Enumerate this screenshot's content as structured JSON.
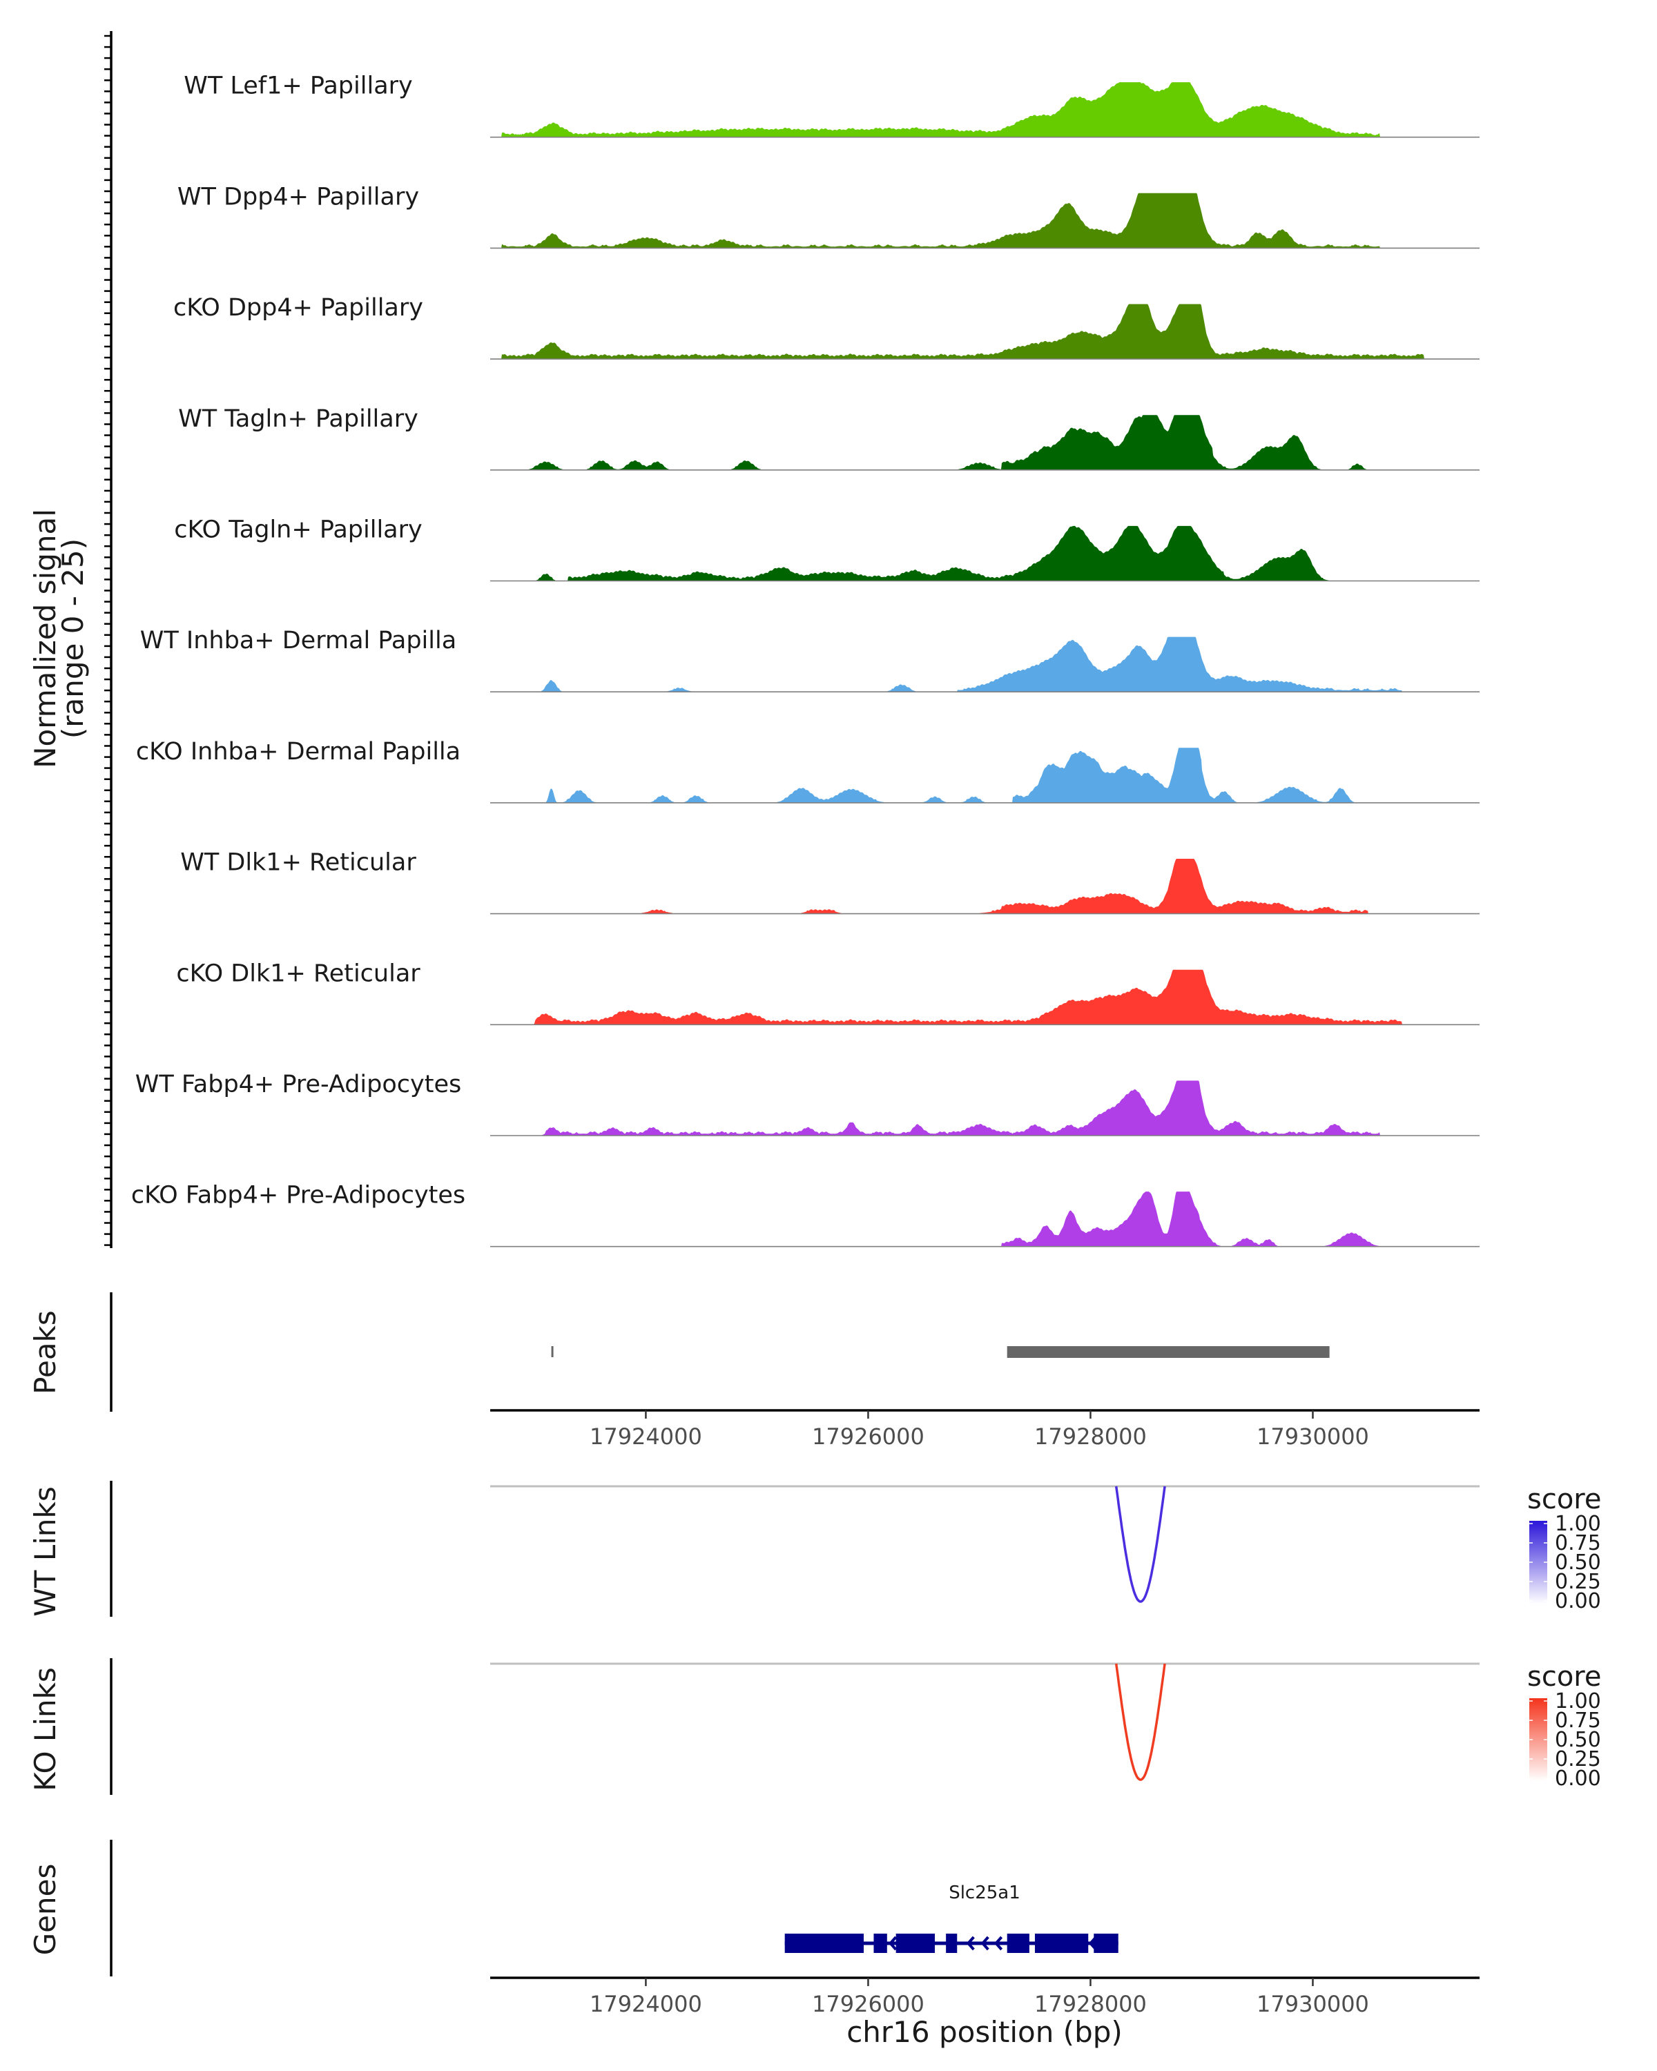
{
  "chart_data": {
    "type": "genome-browser coverage plot",
    "chromosome": "chr16",
    "region": [
      17922600,
      17931500
    ],
    "coverage": {
      "ylabel": "Normalized signal\n(range 0 - 25)",
      "ylabel_line1": "Normalized signal",
      "ylabel_line2": "(range 0 - 25)",
      "ylim": [
        0,
        25
      ],
      "tracks": [
        {
          "name": "WT Lef1+ Papillary",
          "color": "#66cc00",
          "peaks": [
            [
              17923160,
              80,
              0.2
            ],
            [
              17925000,
              600,
              0.09
            ],
            [
              17926400,
              500,
              0.09
            ],
            [
              17927500,
              160,
              0.32
            ],
            [
              17927850,
              120,
              0.52
            ],
            [
              17928200,
              200,
              0.48
            ],
            [
              17928450,
              220,
              0.74
            ],
            [
              17928850,
              130,
              0.9
            ],
            [
              17929500,
              230,
              0.5
            ],
            [
              17929900,
              180,
              0.18
            ]
          ],
          "base": [
            17922700,
            17930600,
            0.07
          ]
        },
        {
          "name": "WT Dpp4+ Papillary",
          "color": "#4d8a00",
          "peaks": [
            [
              17923160,
              60,
              0.22
            ],
            [
              17924000,
              120,
              0.15
            ],
            [
              17924700,
              80,
              0.1
            ],
            [
              17927300,
              150,
              0.18
            ],
            [
              17927700,
              180,
              0.35
            ],
            [
              17927800,
              90,
              0.45
            ],
            [
              17928100,
              140,
              0.25
            ],
            [
              17928450,
              100,
              0.52
            ],
            [
              17928550,
              100,
              0.8
            ],
            [
              17928870,
              90,
              0.98
            ],
            [
              17928780,
              150,
              0.7
            ],
            [
              17929500,
              60,
              0.24
            ],
            [
              17929720,
              70,
              0.3
            ]
          ],
          "base": [
            17922700,
            17930600,
            0.05
          ]
        },
        {
          "name": "cKO Dpp4+ Papillary",
          "color": "#4d8a00",
          "peaks": [
            [
              17923150,
              70,
              0.24
            ],
            [
              17927500,
              200,
              0.2
            ],
            [
              17927950,
              180,
              0.42
            ],
            [
              17928350,
              110,
              0.62
            ],
            [
              17928470,
              90,
              0.82
            ],
            [
              17928820,
              120,
              0.82
            ],
            [
              17928930,
              70,
              1.0
            ],
            [
              17929600,
              200,
              0.12
            ]
          ],
          "base": [
            17922700,
            17931000,
            0.08
          ]
        },
        {
          "name": "WT Tagln+ Papillary",
          "color": "#006400",
          "peaks": [
            [
              17923100,
              70,
              0.14
            ],
            [
              17923600,
              60,
              0.16
            ],
            [
              17923900,
              60,
              0.16
            ],
            [
              17924100,
              50,
              0.14
            ],
            [
              17924900,
              60,
              0.16
            ],
            [
              17927000,
              90,
              0.12
            ],
            [
              17927550,
              120,
              0.22
            ],
            [
              17927850,
              130,
              0.6
            ],
            [
              17928100,
              110,
              0.44
            ],
            [
              17928400,
              90,
              0.7
            ],
            [
              17928570,
              80,
              0.86
            ],
            [
              17928830,
              90,
              1.0
            ],
            [
              17928950,
              110,
              0.66
            ],
            [
              17929600,
              130,
              0.42
            ],
            [
              17929850,
              80,
              0.56
            ],
            [
              17930400,
              40,
              0.1
            ]
          ],
          "base": [
            17927200,
            17929100,
            0.14
          ]
        },
        {
          "name": "cKO Tagln+ Papillary",
          "color": "#006400",
          "peaks": [
            [
              17923100,
              40,
              0.12
            ],
            [
              17923800,
              200,
              0.12
            ],
            [
              17924500,
              100,
              0.1
            ],
            [
              17925200,
              100,
              0.18
            ],
            [
              17925700,
              200,
              0.1
            ],
            [
              17926400,
              100,
              0.12
            ],
            [
              17926800,
              120,
              0.18
            ],
            [
              17927600,
              160,
              0.3
            ],
            [
              17927840,
              120,
              0.62
            ],
            [
              17928000,
              150,
              0.4
            ],
            [
              17928350,
              120,
              0.66
            ],
            [
              17928470,
              150,
              0.4
            ],
            [
              17928800,
              100,
              0.66
            ],
            [
              17928950,
              130,
              0.6
            ],
            [
              17929700,
              160,
              0.42
            ],
            [
              17929920,
              70,
              0.4
            ]
          ],
          "base": [
            17923300,
            17929200,
            0.07
          ]
        },
        {
          "name": "WT Inhba+ Dermal Papilla",
          "color": "#5aa9e6",
          "peaks": [
            [
              17923150,
              40,
              0.2
            ],
            [
              17924300,
              60,
              0.06
            ],
            [
              17926300,
              60,
              0.12
            ],
            [
              17927250,
              160,
              0.18
            ],
            [
              17927650,
              220,
              0.48
            ],
            [
              17927870,
              120,
              0.58
            ],
            [
              17928300,
              150,
              0.46
            ],
            [
              17928450,
              80,
              0.46
            ],
            [
              17928850,
              110,
              1.0
            ],
            [
              17928760,
              140,
              0.66
            ],
            [
              17929250,
              120,
              0.22
            ],
            [
              17929650,
              200,
              0.16
            ]
          ],
          "base": [
            17926800,
            17930800,
            0.05
          ]
        },
        {
          "name": "cKO Inhba+ Dermal Papilla",
          "color": "#5aa9e6",
          "peaks": [
            [
              17923150,
              20,
              0.26
            ],
            [
              17923400,
              60,
              0.22
            ],
            [
              17924150,
              50,
              0.12
            ],
            [
              17924450,
              50,
              0.12
            ],
            [
              17925400,
              90,
              0.26
            ],
            [
              17925850,
              120,
              0.24
            ],
            [
              17926600,
              50,
              0.1
            ],
            [
              17926950,
              50,
              0.1
            ],
            [
              17927650,
              90,
              0.6
            ],
            [
              17927850,
              70,
              0.45
            ],
            [
              17928000,
              110,
              0.7
            ],
            [
              17928300,
              90,
              0.54
            ],
            [
              17928530,
              90,
              0.4
            ],
            [
              17928820,
              60,
              0.85
            ],
            [
              17928930,
              70,
              1.0
            ],
            [
              17929200,
              50,
              0.2
            ],
            [
              17929800,
              120,
              0.28
            ],
            [
              17930250,
              50,
              0.26
            ]
          ],
          "base": [
            17927300,
            17929000,
            0.15
          ]
        },
        {
          "name": "WT Dlk1+ Reticular",
          "color": "#ff3a30",
          "peaks": [
            [
              17924100,
              80,
              0.06
            ],
            [
              17925500,
              60,
              0.06
            ],
            [
              17925650,
              60,
              0.06
            ],
            [
              17927400,
              180,
              0.14
            ],
            [
              17927900,
              120,
              0.2
            ],
            [
              17928250,
              170,
              0.32
            ],
            [
              17928800,
              80,
              0.92
            ],
            [
              17928930,
              80,
              0.74
            ],
            [
              17929400,
              180,
              0.18
            ],
            [
              17929700,
              60,
              0.1
            ],
            [
              17930100,
              60,
              0.06
            ]
          ],
          "base": [
            17927200,
            17930500,
            0.06
          ]
        },
        {
          "name": "cKO Dlk1+ Reticular",
          "color": "#ff3a30",
          "peaks": [
            [
              17923100,
              50,
              0.14
            ],
            [
              17923800,
              100,
              0.16
            ],
            [
              17924050,
              120,
              0.14
            ],
            [
              17924450,
              100,
              0.14
            ],
            [
              17924900,
              100,
              0.14
            ],
            [
              17927800,
              150,
              0.32
            ],
            [
              17928150,
              160,
              0.4
            ],
            [
              17928450,
              130,
              0.5
            ],
            [
              17928800,
              120,
              0.74
            ],
            [
              17928930,
              110,
              1.0
            ],
            [
              17929300,
              150,
              0.18
            ],
            [
              17929800,
              200,
              0.12
            ]
          ],
          "base": [
            17923000,
            17930800,
            0.08
          ]
        },
        {
          "name": "WT Fabp4+ Pre-Adipocytes",
          "color": "#b03fe8",
          "peaks": [
            [
              17923150,
              40,
              0.1
            ],
            [
              17923700,
              40,
              0.1
            ],
            [
              17924050,
              40,
              0.1
            ],
            [
              17925450,
              40,
              0.1
            ],
            [
              17925850,
              40,
              0.18
            ],
            [
              17926450,
              40,
              0.14
            ],
            [
              17927000,
              100,
              0.14
            ],
            [
              17927500,
              60,
              0.14
            ],
            [
              17927800,
              60,
              0.12
            ],
            [
              17928100,
              110,
              0.3
            ],
            [
              17928330,
              110,
              0.52
            ],
            [
              17928450,
              90,
              0.4
            ],
            [
              17928820,
              130,
              0.8
            ],
            [
              17928900,
              70,
              1.0
            ],
            [
              17929300,
              70,
              0.2
            ],
            [
              17930200,
              50,
              0.16
            ]
          ],
          "base": [
            17923100,
            17930600,
            0.06
          ]
        },
        {
          "name": "cKO Fabp4+ Pre-Adipocytes",
          "color": "#b03fe8",
          "peaks": [
            [
              17927350,
              50,
              0.1
            ],
            [
              17927600,
              60,
              0.32
            ],
            [
              17927820,
              60,
              0.58
            ],
            [
              17928050,
              90,
              0.28
            ],
            [
              17928300,
              90,
              0.34
            ],
            [
              17928450,
              70,
              0.6
            ],
            [
              17928550,
              60,
              0.68
            ],
            [
              17928810,
              60,
              1.0
            ],
            [
              17928920,
              90,
              0.62
            ],
            [
              17929400,
              60,
              0.14
            ],
            [
              17929600,
              40,
              0.12
            ],
            [
              17930350,
              100,
              0.24
            ]
          ],
          "base": [
            17927200,
            17928980,
            0.06
          ]
        }
      ]
    },
    "peaks_track": {
      "title": "Peaks",
      "ranges": [
        [
          17923150,
          17923165
        ],
        [
          17927250,
          17930150
        ]
      ]
    },
    "x_axis": {
      "ticks": [
        17924000,
        17926000,
        17928000,
        17930000
      ],
      "tick_labels": [
        "17924000",
        "17926000",
        "17928000",
        "17930000"
      ],
      "title": "chr16 position (bp)"
    },
    "links": [
      {
        "title": "WT Links",
        "color": "#4b2ee0",
        "start": 17928250,
        "end": 17928650,
        "score": 0.85,
        "legend": {
          "title": "score",
          "ticks": [
            "1.00",
            "0.75",
            "0.50",
            "0.25",
            "0.00"
          ],
          "high_color": "#2b16d9"
        }
      },
      {
        "title": "KO Links",
        "color": "#f03d22",
        "start": 17928250,
        "end": 17928650,
        "score": 0.85,
        "legend": {
          "title": "score",
          "ticks": [
            "1.00",
            "0.75",
            "0.50",
            "0.25",
            "0.00"
          ],
          "high_color": "#f4341c"
        }
      }
    ],
    "genes_track": {
      "title": "Genes",
      "gene": "Slc25a1",
      "color": "#00008b",
      "start": 17925250,
      "end": 17928250,
      "strand": "-",
      "exons": [
        [
          17925250,
          17925960
        ],
        [
          17926050,
          17926170
        ],
        [
          17926250,
          17926600
        ],
        [
          17926700,
          17926800
        ],
        [
          17927250,
          17927450
        ],
        [
          17927500,
          17927980
        ],
        [
          17928030,
          17928250
        ]
      ]
    }
  }
}
